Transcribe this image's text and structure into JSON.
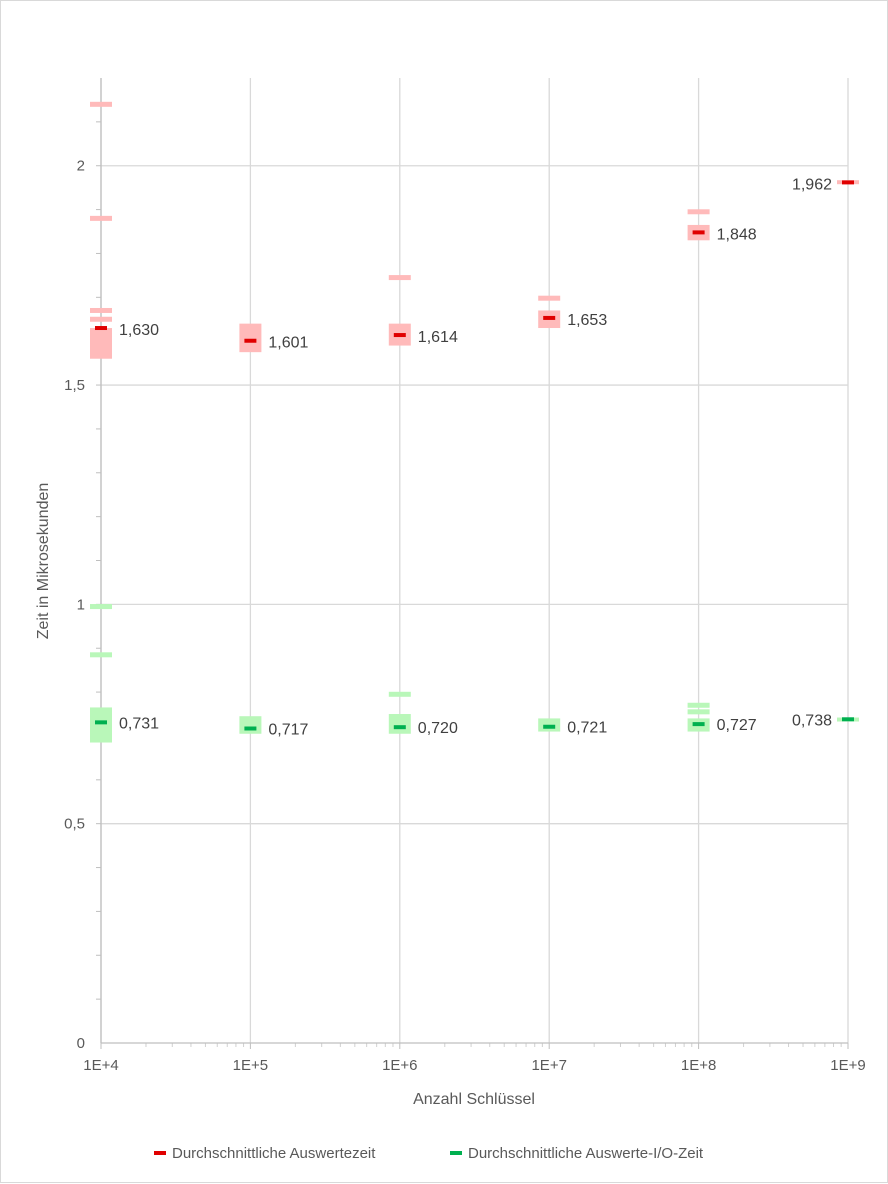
{
  "chart_data": {
    "type": "scatter",
    "title": "",
    "xlabel": "Anzahl Schlüssel",
    "ylabel": "Zeit in Mikrosekunden",
    "x_scale": "log",
    "x": [
      "1E+4",
      "1E+5",
      "1E+6",
      "1E+7",
      "1E+8",
      "1E+9"
    ],
    "x_values": [
      10000,
      100000,
      1000000,
      10000000,
      100000000,
      1000000000
    ],
    "ylim": [
      0,
      2.2
    ],
    "yticks": [
      0,
      0.5,
      1,
      1.5,
      2
    ],
    "ytick_labels": [
      "0",
      "0,5",
      "1",
      "1,5",
      "2"
    ],
    "grid": true,
    "legend_position": "bottom",
    "series": [
      {
        "name": "Durchschnittliche Auswertezeit",
        "color": "#e00000",
        "range_color": "#ffbaba",
        "values": [
          1.63,
          1.601,
          1.614,
          1.653,
          1.848,
          1.962
        ],
        "labels": [
          "1,630",
          "1,601",
          "1,614",
          "1,653",
          "1,848",
          "1,962"
        ],
        "ranges": [
          [
            1.56,
            1.63
          ],
          [
            1.575,
            1.64
          ],
          [
            1.59,
            1.64
          ],
          [
            1.63,
            1.67
          ],
          [
            1.83,
            1.865
          ],
          [
            1.958,
            1.967
          ]
        ],
        "outliers": [
          [
            2.14,
            1.88,
            1.67,
            1.65
          ],
          [],
          [
            1.745
          ],
          [
            1.698
          ],
          [
            1.895
          ],
          []
        ]
      },
      {
        "name": "Durchschnittliche Auswerte-I/O-Zeit",
        "color": "#00b050",
        "range_color": "#b9f7b9",
        "values": [
          0.731,
          0.717,
          0.72,
          0.721,
          0.727,
          0.738
        ],
        "labels": [
          "0,731",
          "0,717",
          "0,720",
          "0,721",
          "0,727",
          "0,738"
        ],
        "ranges": [
          [
            0.685,
            0.765
          ],
          [
            0.705,
            0.745
          ],
          [
            0.705,
            0.75
          ],
          [
            0.71,
            0.74
          ],
          [
            0.71,
            0.74
          ],
          [
            0.735,
            0.742
          ]
        ],
        "outliers": [
          [
            0.995,
            0.885
          ],
          [],
          [
            0.795
          ],
          [],
          [
            0.77,
            0.755
          ],
          []
        ]
      }
    ]
  }
}
